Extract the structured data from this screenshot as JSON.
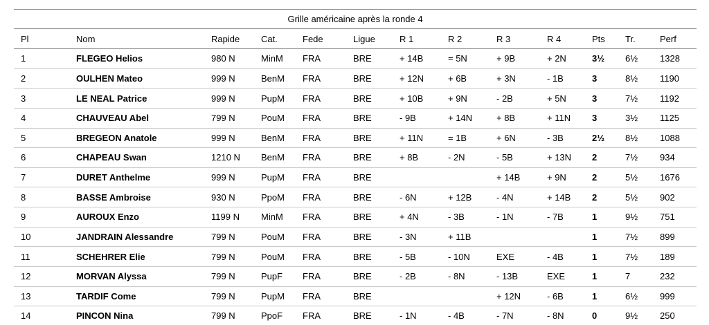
{
  "title": "Grille américaine après la ronde 4",
  "table": {
    "column_keys": [
      "pl",
      "nom",
      "rapide",
      "cat",
      "fede",
      "ligue",
      "r1",
      "r2",
      "r3",
      "r4",
      "pts",
      "tr",
      "perf"
    ],
    "columns": [
      "Pl",
      "Nom",
      "Rapide",
      "Cat.",
      "Fede",
      "Ligue",
      "R 1",
      "R 2",
      "R 3",
      "R 4",
      "Pts",
      "Tr.",
      "Perf"
    ],
    "rows": [
      [
        "1",
        "FLEGEO Helios",
        "980 N",
        "MinM",
        "FRA",
        "BRE",
        "+ 14B",
        "= 5N",
        "+ 9B",
        "+ 2N",
        "3½",
        "6½",
        "1328"
      ],
      [
        "2",
        "OULHEN Mateo",
        "999 N",
        "BenM",
        "FRA",
        "BRE",
        "+ 12N",
        "+ 6B",
        "+ 3N",
        "- 1B",
        "3",
        "8½",
        "1190"
      ],
      [
        "3",
        "LE NEAL Patrice",
        "999 N",
        "PupM",
        "FRA",
        "BRE",
        "+ 10B",
        "+ 9N",
        "- 2B",
        "+ 5N",
        "3",
        "7½",
        "1192"
      ],
      [
        "4",
        "CHAUVEAU Abel",
        "799 N",
        "PouM",
        "FRA",
        "BRE",
        "- 9B",
        "+ 14N",
        "+ 8B",
        "+ 11N",
        "3",
        "3½",
        "1125"
      ],
      [
        "5",
        "BREGEON Anatole",
        "999 N",
        "BenM",
        "FRA",
        "BRE",
        "+ 11N",
        "= 1B",
        "+ 6N",
        "- 3B",
        "2½",
        "8½",
        "1088"
      ],
      [
        "6",
        "CHAPEAU Swan",
        "1210 N",
        "BenM",
        "FRA",
        "BRE",
        "+ 8B",
        "- 2N",
        "- 5B",
        "+ 13N",
        "2",
        "7½",
        "934"
      ],
      [
        "7",
        "DURET Anthelme",
        "999 N",
        "PupM",
        "FRA",
        "BRE",
        "",
        "",
        "+ 14B",
        "+ 9N",
        "2",
        "5½",
        "1676"
      ],
      [
        "8",
        "BASSE Ambroise",
        "930 N",
        "PpoM",
        "FRA",
        "BRE",
        "- 6N",
        "+ 12B",
        "- 4N",
        "+ 14B",
        "2",
        "5½",
        "902"
      ],
      [
        "9",
        "AUROUX Enzo",
        "1199 N",
        "MinM",
        "FRA",
        "BRE",
        "+ 4N",
        "- 3B",
        "- 1N",
        "- 7B",
        "1",
        "9½",
        "751"
      ],
      [
        "10",
        "JANDRAIN Alessandre",
        "799 N",
        "PouM",
        "FRA",
        "BRE",
        "- 3N",
        "+ 11B",
        "",
        "",
        "1",
        "7½",
        "899"
      ],
      [
        "11",
        "SCHEHRER Elie",
        "799 N",
        "PouM",
        "FRA",
        "BRE",
        "- 5B",
        "- 10N",
        "EXE",
        "- 4B",
        "1",
        "7½",
        "189"
      ],
      [
        "12",
        "MORVAN Alyssa",
        "799 N",
        "PupF",
        "FRA",
        "BRE",
        "- 2B",
        "- 8N",
        "- 13B",
        "EXE",
        "1",
        "7",
        "232"
      ],
      [
        "13",
        "TARDIF Come",
        "799 N",
        "PupM",
        "FRA",
        "BRE",
        "",
        "",
        "+ 12N",
        "- 6B",
        "1",
        "6½",
        "999"
      ],
      [
        "14",
        "PINCON Nina",
        "799 N",
        "PpoF",
        "FRA",
        "BRE",
        "- 1N",
        "- 4B",
        "- 7N",
        "- 8N",
        "0",
        "9½",
        "250"
      ]
    ]
  }
}
